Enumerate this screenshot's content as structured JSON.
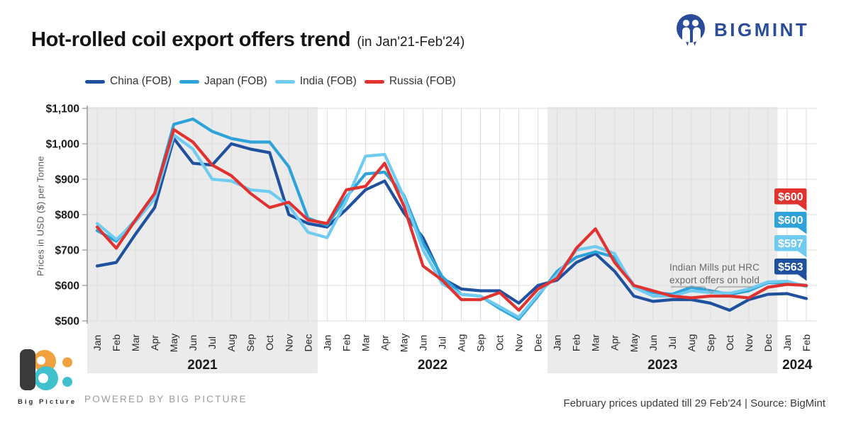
{
  "header": {
    "title": "Hot-rolled coil export offers trend",
    "subtitle": "(in Jan'21-Feb'24)",
    "brand": "BIGMINT"
  },
  "chart_data": {
    "type": "line",
    "title": "Hot-rolled coil export offers trend (in Jan'21-Feb'24)",
    "ylabel": "Prices in USD ($) per Tonne",
    "ylim": [
      500,
      1100
    ],
    "yticks": [
      500,
      600,
      700,
      800,
      900,
      1000,
      1100
    ],
    "ytick_prefix": "$",
    "grid": true,
    "legend_position": "top",
    "months": [
      "Jan",
      "Feb",
      "Mar",
      "Apr",
      "May",
      "Jun",
      "Jul",
      "Aug",
      "Sep",
      "Oct",
      "Nov",
      "Dec",
      "Jan",
      "Feb",
      "Mar",
      "Apr",
      "May",
      "Jun",
      "Jul",
      "Aug",
      "Sep",
      "Oct",
      "Nov",
      "Dec",
      "Jan",
      "Feb",
      "Mar",
      "Apr",
      "May",
      "Jun",
      "Jul",
      "Aug",
      "Sep",
      "Oct",
      "Nov",
      "Dec",
      "Jan",
      "Feb"
    ],
    "year_groups": [
      {
        "year": "2021",
        "start": 0,
        "count": 12,
        "shaded": true
      },
      {
        "year": "2022",
        "start": 12,
        "count": 12,
        "shaded": false
      },
      {
        "year": "2023",
        "start": 24,
        "count": 12,
        "shaded": true
      },
      {
        "year": "2024",
        "start": 36,
        "count": 2,
        "shaded": false
      }
    ],
    "series": [
      {
        "name": "China (FOB)",
        "color": "#1f519f",
        "values": [
          655,
          665,
          745,
          820,
          1015,
          945,
          940,
          1000,
          985,
          975,
          800,
          775,
          765,
          815,
          870,
          895,
          805,
          735,
          620,
          590,
          585,
          585,
          550,
          600,
          615,
          665,
          690,
          640,
          570,
          555,
          560,
          560,
          550,
          530,
          560,
          575,
          577,
          563
        ]
      },
      {
        "name": "Japan (FOB)",
        "color": "#2ea3d9",
        "values": [
          755,
          725,
          785,
          860,
          1055,
          1070,
          1035,
          1015,
          1005,
          1005,
          935,
          790,
          770,
          850,
          915,
          920,
          855,
          720,
          625,
          575,
          570,
          535,
          505,
          570,
          640,
          680,
          695,
          680,
          600,
          580,
          575,
          595,
          585,
          575,
          585,
          608,
          607,
          600
        ]
      },
      {
        "name": "India (FOB)",
        "color": "#70cbf1",
        "values": [
          775,
          730,
          780,
          845,
          1025,
          985,
          900,
          895,
          870,
          865,
          825,
          750,
          735,
          840,
          965,
          970,
          850,
          700,
          605,
          575,
          570,
          540,
          510,
          575,
          630,
          700,
          710,
          690,
          595,
          570,
          570,
          585,
          580,
          578,
          590,
          610,
          612,
          597
        ]
      },
      {
        "name": "Russia (FOB)",
        "color": "#e0332f",
        "values": [
          765,
          705,
          785,
          860,
          1040,
          1005,
          940,
          910,
          860,
          820,
          835,
          785,
          775,
          870,
          880,
          945,
          825,
          655,
          615,
          560,
          560,
          580,
          530,
          590,
          620,
          705,
          760,
          665,
          600,
          585,
          570,
          565,
          570,
          570,
          565,
          595,
          603,
          600
        ]
      }
    ],
    "end_labels": [
      {
        "text": "$600",
        "color": "#e0332f"
      },
      {
        "text": "$600",
        "color": "#2ea3d9"
      },
      {
        "text": "$597",
        "color": "#70cbf1"
      },
      {
        "text": "$563",
        "color": "#1f519f"
      }
    ],
    "annotation": {
      "line1": "Indian Mills put HRC",
      "line2": "export offers on hold"
    }
  },
  "footer": {
    "brand_name": "Big Picture",
    "powered_by": "POWERED BY BIG PICTURE",
    "note": "February prices updated till 29 Feb'24 |  Source: BigMint"
  },
  "colors": {
    "band": "#ebebeb",
    "grid": "#dcdcdc",
    "axis": "#9a9a9a",
    "brand_blue": "#2b4c9a"
  }
}
